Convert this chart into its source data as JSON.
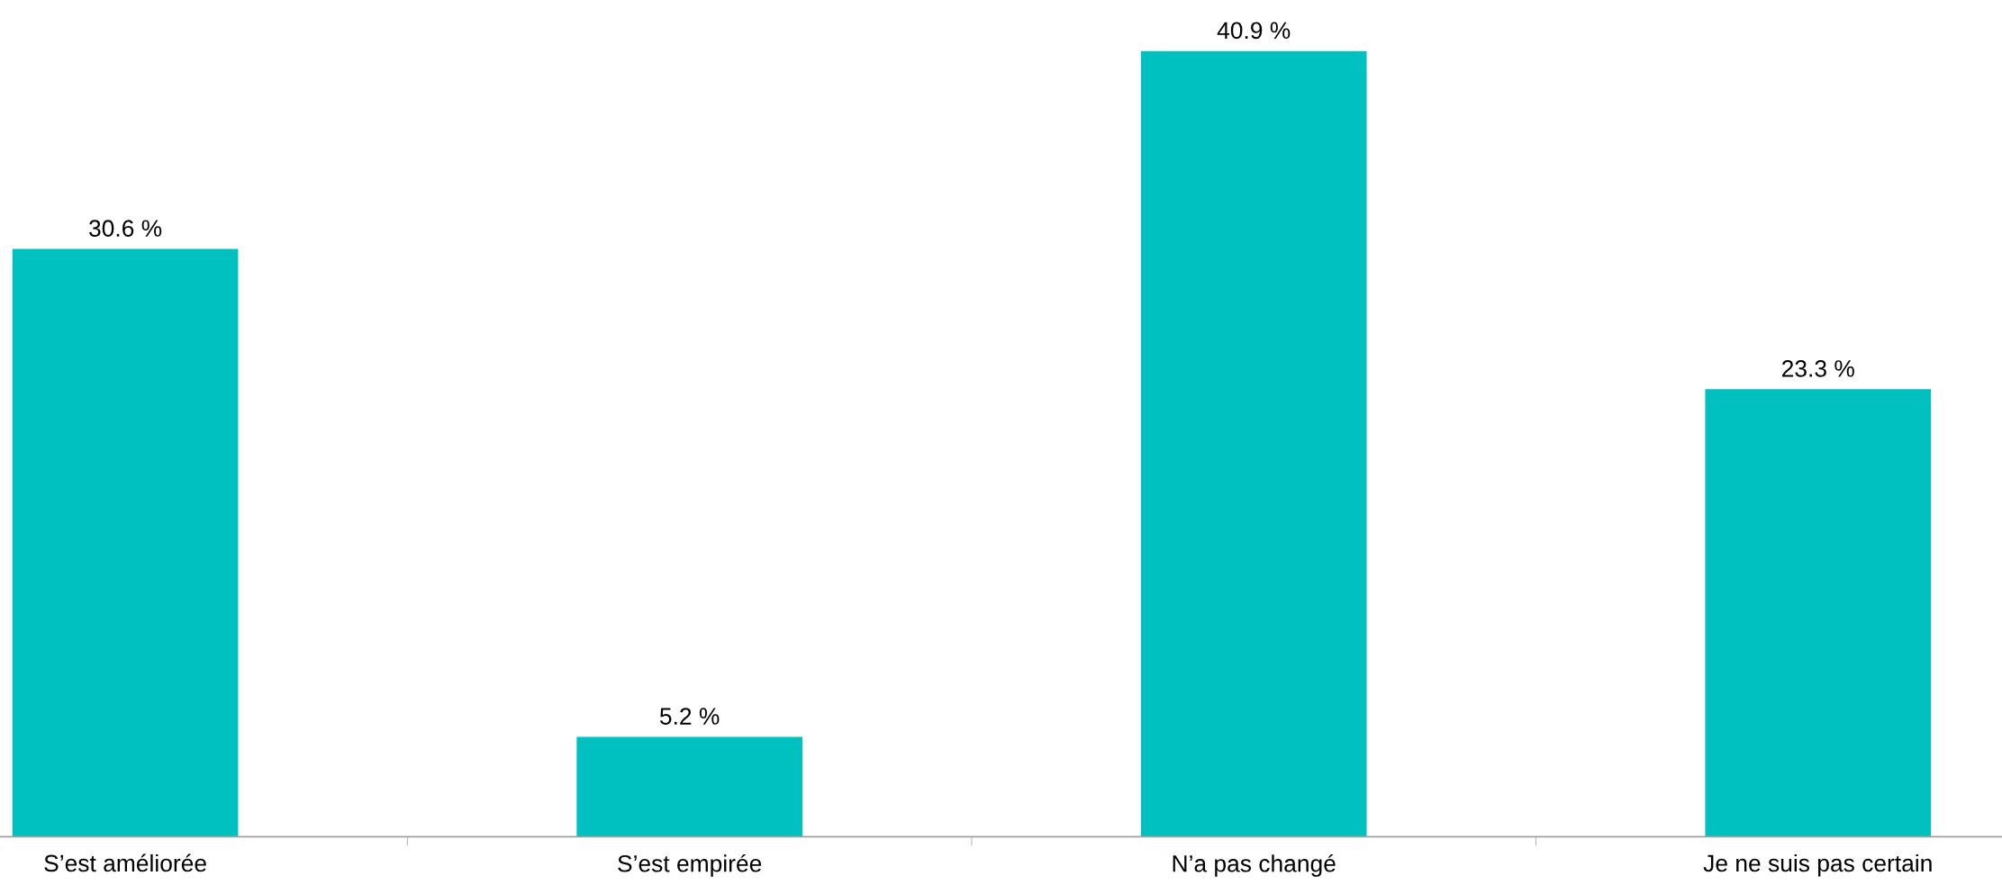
{
  "chart_data": {
    "type": "bar",
    "categories": [
      "S’est améliorée",
      "S’est empirée",
      "N’a pas changé",
      "Je ne suis pas certain"
    ],
    "values": [
      30.6,
      5.2,
      40.9,
      23.3
    ],
    "value_labels": [
      "30.6 %",
      "5.2 %",
      "40.9 %",
      "23.3 %"
    ],
    "color": "#00c0c0"
  }
}
